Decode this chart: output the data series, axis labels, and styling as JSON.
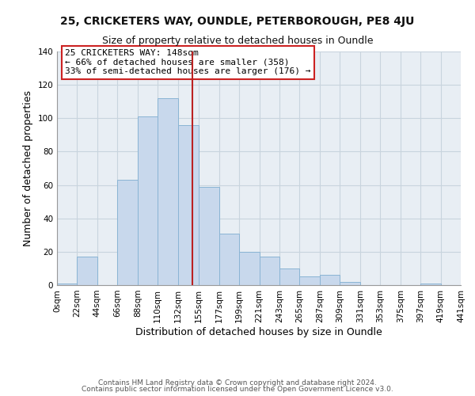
{
  "title": "25, CRICKETERS WAY, OUNDLE, PETERBOROUGH, PE8 4JU",
  "subtitle": "Size of property relative to detached houses in Oundle",
  "xlabel": "Distribution of detached houses by size in Oundle",
  "ylabel": "Number of detached properties",
  "bin_edges": [
    0,
    22,
    44,
    66,
    88,
    110,
    132,
    155,
    177,
    199,
    221,
    243,
    265,
    287,
    309,
    331,
    353,
    375,
    397,
    419,
    441
  ],
  "bin_labels": [
    "0sqm",
    "22sqm",
    "44sqm",
    "66sqm",
    "88sqm",
    "110sqm",
    "132sqm",
    "155sqm",
    "177sqm",
    "199sqm",
    "221sqm",
    "243sqm",
    "265sqm",
    "287sqm",
    "309sqm",
    "331sqm",
    "353sqm",
    "375sqm",
    "397sqm",
    "419sqm",
    "441sqm"
  ],
  "bar_heights": [
    1,
    17,
    0,
    63,
    101,
    112,
    96,
    59,
    31,
    20,
    17,
    10,
    5,
    6,
    2,
    0,
    0,
    0,
    1,
    0
  ],
  "bar_color": "#c8d8ec",
  "bar_edge_color": "#8ab4d4",
  "vline_x": 148,
  "vline_color": "#bb2222",
  "ylim": [
    0,
    140
  ],
  "yticks": [
    0,
    20,
    40,
    60,
    80,
    100,
    120,
    140
  ],
  "annotation_title": "25 CRICKETERS WAY: 148sqm",
  "annotation_line1": "← 66% of detached houses are smaller (358)",
  "annotation_line2": "33% of semi-detached houses are larger (176) →",
  "annotation_box_color": "#ffffff",
  "annotation_box_edge_color": "#cc2222",
  "footer_line1": "Contains HM Land Registry data © Crown copyright and database right 2024.",
  "footer_line2": "Contains public sector information licensed under the Open Government Licence v3.0.",
  "grid_color": "#c8d4de",
  "background_color": "#e8eef4",
  "title_fontsize": 10,
  "subtitle_fontsize": 9,
  "axis_label_fontsize": 9,
  "tick_fontsize": 7.5,
  "annotation_fontsize": 8,
  "footer_fontsize": 6.5
}
